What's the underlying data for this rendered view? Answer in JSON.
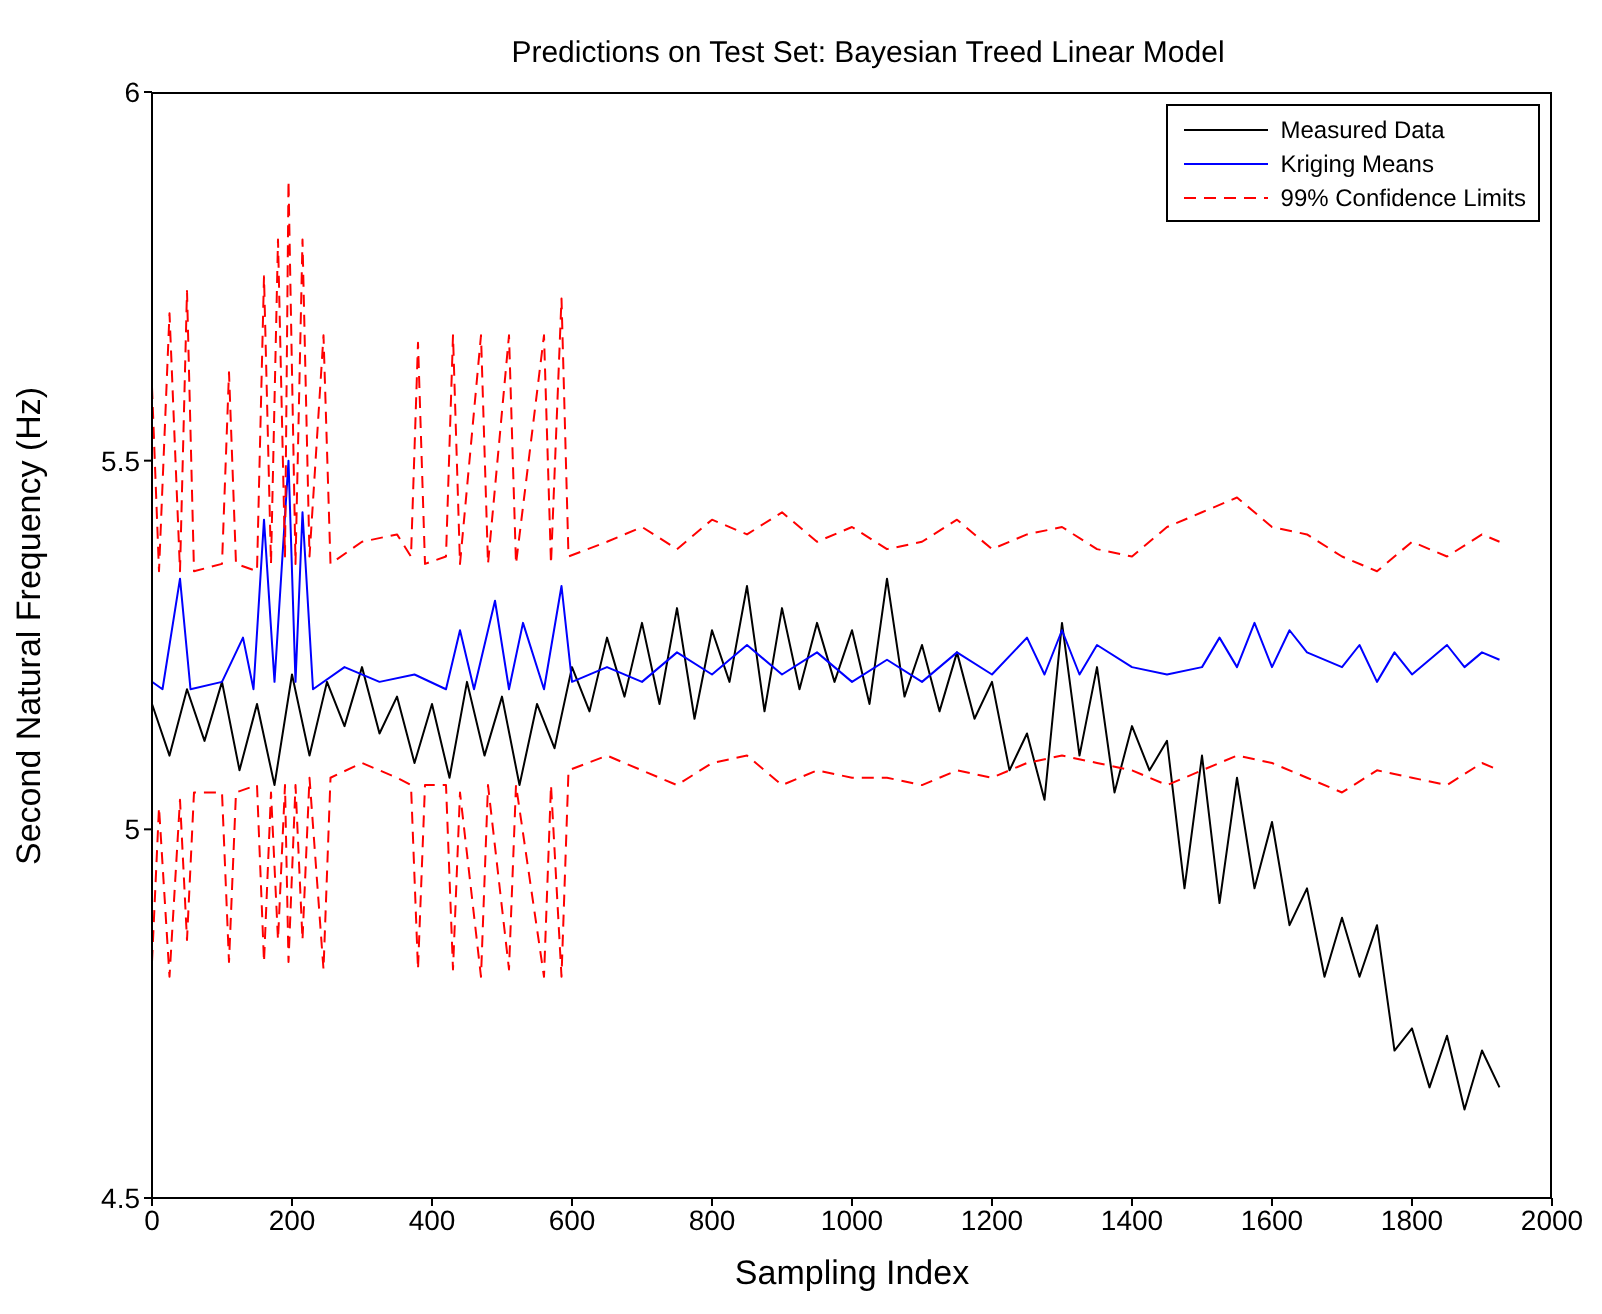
{
  "chart_data": {
    "type": "line",
    "title": "Predictions on Test Set: Bayesian Treed Linear Model",
    "xlabel": "Sampling Index",
    "ylabel": "Second Natural Frequency (Hz)",
    "xlim": [
      0,
      2000
    ],
    "xticks": [
      0,
      200,
      400,
      600,
      800,
      1000,
      1200,
      1400,
      1600,
      1800,
      2000
    ],
    "ylim": [
      4.5,
      6
    ],
    "yticks": [
      4.5,
      5,
      5.5,
      6
    ],
    "legend": "top right",
    "marker": "none",
    "series": [
      {
        "name": "Measured Data",
        "color": "#000000",
        "line_style": "solid",
        "x": [
          0,
          25,
          50,
          75,
          100,
          125,
          150,
          175,
          200,
          225,
          250,
          275,
          300,
          325,
          350,
          375,
          400,
          425,
          450,
          475,
          500,
          525,
          550,
          575,
          600,
          625,
          650,
          675,
          700,
          725,
          750,
          775,
          800,
          825,
          850,
          875,
          900,
          925,
          950,
          975,
          1000,
          1025,
          1050,
          1075,
          1100,
          1125,
          1150,
          1175,
          1200,
          1225,
          1250,
          1275,
          1300,
          1325,
          1350,
          1375,
          1400,
          1425,
          1450,
          1475,
          1500,
          1525,
          1550,
          1575,
          1600,
          1625,
          1650,
          1675,
          1700,
          1725,
          1750,
          1775,
          1800,
          1825,
          1850,
          1875,
          1900,
          1925
        ],
        "values": [
          5.17,
          5.1,
          5.19,
          5.12,
          5.2,
          5.08,
          5.17,
          5.06,
          5.21,
          5.1,
          5.2,
          5.14,
          5.22,
          5.13,
          5.18,
          5.09,
          5.17,
          5.07,
          5.2,
          5.1,
          5.18,
          5.06,
          5.17,
          5.11,
          5.22,
          5.16,
          5.26,
          5.18,
          5.28,
          5.17,
          5.3,
          5.15,
          5.27,
          5.2,
          5.33,
          5.16,
          5.3,
          5.19,
          5.28,
          5.2,
          5.27,
          5.17,
          5.34,
          5.18,
          5.25,
          5.16,
          5.24,
          5.15,
          5.2,
          5.08,
          5.13,
          5.04,
          5.28,
          5.1,
          5.22,
          5.05,
          5.14,
          5.08,
          5.12,
          4.92,
          5.1,
          4.9,
          5.07,
          4.92,
          5.01,
          4.87,
          4.92,
          4.8,
          4.88,
          4.8,
          4.87,
          4.7,
          4.73,
          4.65,
          4.72,
          4.62,
          4.7,
          4.65
        ]
      },
      {
        "name": "Kriging Means",
        "color": "#0000ff",
        "line_style": "solid",
        "x": [
          0,
          15,
          40,
          55,
          100,
          130,
          145,
          160,
          175,
          195,
          205,
          215,
          230,
          275,
          325,
          375,
          420,
          440,
          460,
          490,
          510,
          530,
          560,
          585,
          600,
          650,
          700,
          750,
          800,
          850,
          900,
          950,
          1000,
          1050,
          1100,
          1150,
          1200,
          1250,
          1275,
          1300,
          1325,
          1350,
          1400,
          1450,
          1500,
          1525,
          1550,
          1575,
          1600,
          1625,
          1650,
          1700,
          1725,
          1750,
          1775,
          1800,
          1850,
          1875,
          1900,
          1925
        ],
        "values": [
          5.2,
          5.19,
          5.34,
          5.19,
          5.2,
          5.26,
          5.19,
          5.42,
          5.2,
          5.5,
          5.2,
          5.43,
          5.19,
          5.22,
          5.2,
          5.21,
          5.19,
          5.27,
          5.19,
          5.31,
          5.19,
          5.28,
          5.19,
          5.33,
          5.2,
          5.22,
          5.2,
          5.24,
          5.21,
          5.25,
          5.21,
          5.24,
          5.2,
          5.23,
          5.2,
          5.24,
          5.21,
          5.26,
          5.21,
          5.27,
          5.21,
          5.25,
          5.22,
          5.21,
          5.22,
          5.26,
          5.22,
          5.28,
          5.22,
          5.27,
          5.24,
          5.22,
          5.25,
          5.2,
          5.24,
          5.21,
          5.25,
          5.22,
          5.24,
          5.23
        ]
      },
      {
        "name": "99% Confidence Limits",
        "color": "#ff0000",
        "line_style": "dashed",
        "x": [
          0,
          10,
          25,
          40,
          50,
          60,
          100,
          110,
          120,
          150,
          160,
          170,
          180,
          190,
          195,
          205,
          215,
          225,
          245,
          255,
          300,
          350,
          370,
          380,
          390,
          420,
          430,
          440,
          470,
          480,
          510,
          520,
          560,
          570,
          585,
          595,
          650,
          700,
          750,
          800,
          850,
          900,
          950,
          1000,
          1050,
          1100,
          1150,
          1200,
          1250,
          1300,
          1350,
          1400,
          1450,
          1500,
          1550,
          1600,
          1650,
          1700,
          1750,
          1800,
          1850,
          1900,
          1925
        ],
        "values": [
          5.6,
          5.35,
          5.7,
          5.35,
          5.73,
          5.35,
          5.36,
          5.62,
          5.36,
          5.35,
          5.75,
          5.36,
          5.8,
          5.37,
          5.88,
          5.36,
          5.8,
          5.37,
          5.67,
          5.36,
          5.39,
          5.4,
          5.37,
          5.66,
          5.36,
          5.37,
          5.67,
          5.36,
          5.67,
          5.36,
          5.67,
          5.36,
          5.67,
          5.36,
          5.72,
          5.37,
          5.39,
          5.41,
          5.38,
          5.42,
          5.4,
          5.43,
          5.39,
          5.41,
          5.38,
          5.39,
          5.42,
          5.38,
          5.4,
          5.41,
          5.38,
          5.37,
          5.41,
          5.43,
          5.45,
          5.41,
          5.4,
          5.37,
          5.35,
          5.39,
          5.37,
          5.4,
          5.39
        ]
      },
      {
        "color": "#ff0000",
        "line_style": "dashed",
        "x": [
          0,
          10,
          25,
          40,
          50,
          60,
          100,
          110,
          120,
          150,
          160,
          170,
          180,
          190,
          195,
          205,
          215,
          225,
          245,
          255,
          300,
          350,
          370,
          380,
          390,
          420,
          430,
          440,
          470,
          480,
          510,
          520,
          560,
          570,
          585,
          595,
          650,
          700,
          750,
          800,
          850,
          900,
          950,
          1000,
          1050,
          1100,
          1150,
          1200,
          1250,
          1300,
          1350,
          1400,
          1450,
          1500,
          1550,
          1600,
          1650,
          1700,
          1750,
          1800,
          1850,
          1900,
          1925
        ],
        "values": [
          4.82,
          5.03,
          4.8,
          5.04,
          4.85,
          5.05,
          5.05,
          4.82,
          5.05,
          5.06,
          4.82,
          5.05,
          4.85,
          5.06,
          4.82,
          5.06,
          4.85,
          5.07,
          4.81,
          5.07,
          5.09,
          5.07,
          5.06,
          4.81,
          5.06,
          5.06,
          4.81,
          5.05,
          4.8,
          5.06,
          4.81,
          5.06,
          4.8,
          5.06,
          4.8,
          5.08,
          5.1,
          5.08,
          5.06,
          5.09,
          5.1,
          5.06,
          5.08,
          5.07,
          5.07,
          5.06,
          5.08,
          5.07,
          5.09,
          5.1,
          5.09,
          5.08,
          5.06,
          5.08,
          5.1,
          5.09,
          5.07,
          5.05,
          5.08,
          5.07,
          5.06,
          5.09,
          5.08
        ]
      }
    ]
  }
}
